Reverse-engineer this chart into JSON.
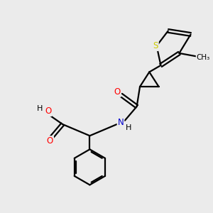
{
  "background_color": "#ebebeb",
  "bond_color": "#000000",
  "bond_width": 1.6,
  "atom_colors": {
    "O": "#ff0000",
    "N": "#0000cc",
    "S": "#cccc00",
    "C": "#000000",
    "H": "#000000"
  },
  "font_size": 8.5,
  "fig_size": [
    3.0,
    3.0
  ],
  "dpi": 100
}
